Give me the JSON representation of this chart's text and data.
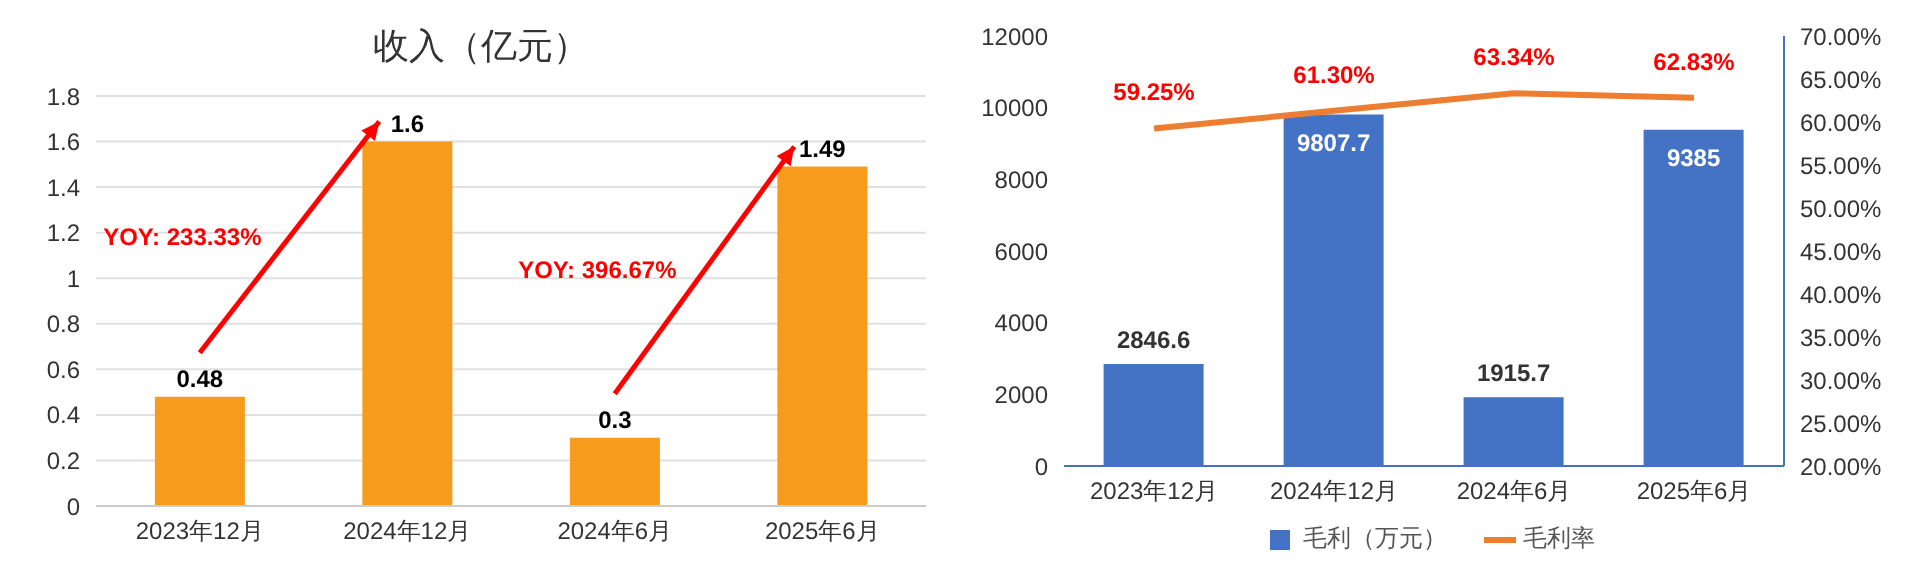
{
  "chart_data": [
    {
      "type": "bar",
      "title": "收入（亿元）",
      "categories": [
        "2023年12月",
        "2024年12月",
        "2024年6月",
        "2025年6月"
      ],
      "values": [
        0.48,
        1.6,
        0.3,
        1.49
      ],
      "color": "#f79b1c",
      "ylim": [
        0,
        1.8
      ],
      "yticks": [
        0,
        0.2,
        0.4,
        0.6,
        0.8,
        1,
        1.2,
        1.4,
        1.6,
        1.8
      ],
      "grid": "y",
      "data_labels": true,
      "annotations": [
        "YOY: 233.33%",
        "YOY: 396.67%"
      ]
    },
    {
      "type": "bar",
      "categories": [
        "2023年12月",
        "2024年12月",
        "2024年6月",
        "2025年6月"
      ],
      "series": [
        {
          "name": "毛利（万元）",
          "color": "#4472c4",
          "values": [
            2846.6,
            9807.7,
            1915.7,
            9385
          ],
          "value_labels": [
            "2846.6",
            "9807.7",
            "1915.7",
            "9385"
          ]
        },
        {
          "name": "毛利率",
          "type": "line",
          "axis": "y2",
          "color": "#ed7d31",
          "values": [
            59.25,
            61.3,
            63.34,
            62.83
          ],
          "value_labels": [
            "59.25%",
            "61.30%",
            "63.34%",
            "62.83%"
          ]
        }
      ],
      "ylim": [
        0,
        12000
      ],
      "yticks": [
        0,
        2000,
        4000,
        6000,
        8000,
        10000,
        12000
      ],
      "y2lim": [
        20,
        70
      ],
      "y2ticks": [
        {
          "value": 20,
          "label": "20.00%"
        },
        {
          "value": 25,
          "label": "25.00%"
        },
        {
          "value": 30,
          "label": "30.00%"
        },
        {
          "value": 35,
          "label": "35.00%"
        },
        {
          "value": 40,
          "label": "40.00%"
        },
        {
          "value": 45,
          "label": "45.00%"
        },
        {
          "value": 50,
          "label": "50.00%"
        },
        {
          "value": 55,
          "label": "55.00%"
        },
        {
          "value": 60,
          "label": "60.00%"
        },
        {
          "value": 65,
          "label": "65.00%"
        },
        {
          "value": 70,
          "label": "70.00%"
        }
      ],
      "legend": "bottom",
      "marker": "none"
    }
  ]
}
